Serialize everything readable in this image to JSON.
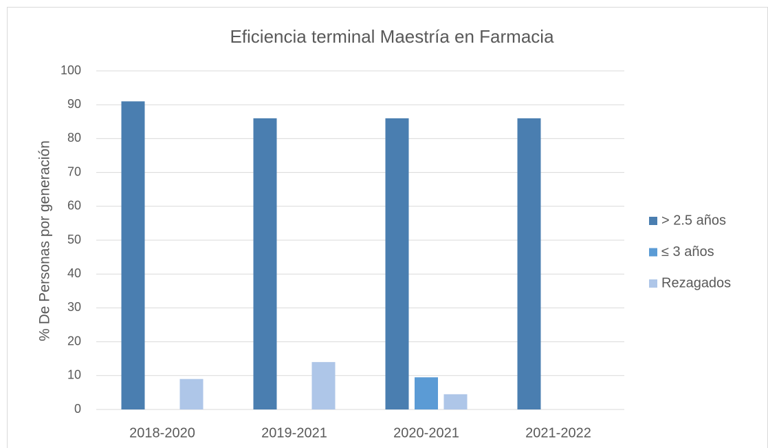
{
  "chart_data": {
    "type": "bar",
    "title": "Eficiencia terminal Maestría en Farmacia",
    "y_label": "% De Personas por generación",
    "categories": [
      "2018-2020",
      "2019-2021",
      "2020-2021",
      "2021-2022"
    ],
    "series": [
      {
        "name": "> 2.5 años",
        "color": "#4a7eb0",
        "values": [
          91,
          86,
          86,
          86
        ]
      },
      {
        "name": "≤ 3 años",
        "color": "#5b9bd5",
        "values": [
          null,
          null,
          9.5,
          null
        ]
      },
      {
        "name": "Rezagados",
        "color": "#aec6e8",
        "values": [
          9,
          14,
          4.5,
          null
        ]
      }
    ],
    "ylim": [
      0,
      100
    ],
    "yticks": [
      0,
      10,
      20,
      30,
      40,
      50,
      60,
      70,
      80,
      90,
      100
    ],
    "grid": true,
    "legend": "right"
  }
}
